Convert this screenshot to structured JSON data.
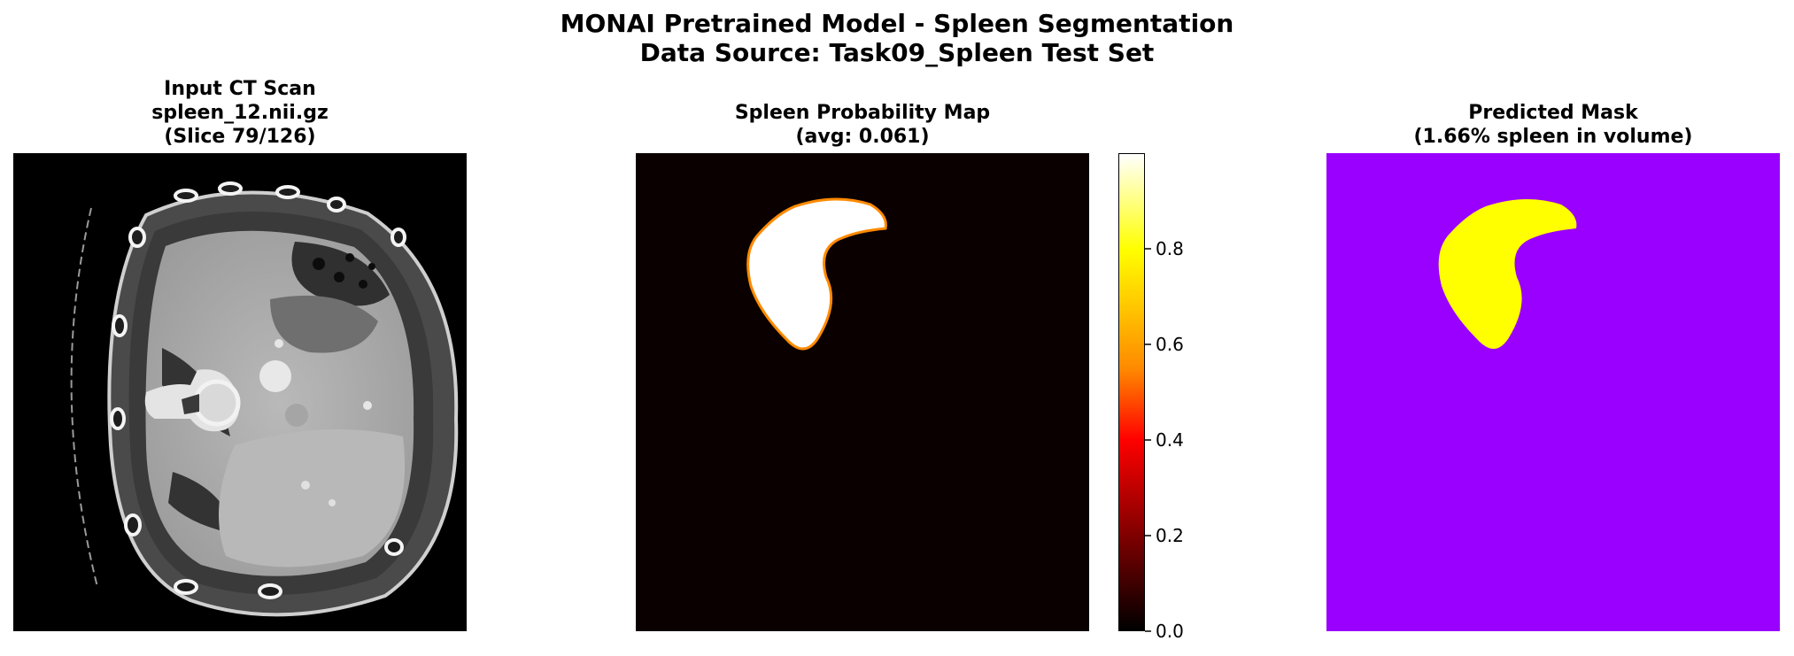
{
  "figure": {
    "title_line1": "MONAI Pretrained Model - Spleen Segmentation",
    "title_line2": "Data Source: Task09_Spleen Test Set"
  },
  "panels": [
    {
      "id": "ct",
      "title": [
        "Input CT Scan",
        "spleen_12.nii.gz",
        "(Slice 79/126)"
      ]
    },
    {
      "id": "prob",
      "title": [
        "Spleen Probability Map",
        "(avg: 0.061)"
      ]
    },
    {
      "id": "mask",
      "title": [
        "Predicted Mask",
        "(1.66% spleen in volume)"
      ]
    }
  ],
  "colorbar": {
    "colormap": "hot",
    "min": 0.0,
    "max": 1.0,
    "ticks": [
      "0.0",
      "0.2",
      "0.4",
      "0.6",
      "0.8"
    ]
  },
  "colors": {
    "background": "#000000",
    "prob_background": "#0b0000",
    "spleen_prob": "#ffffff",
    "spleen_edge": "#ff8a00",
    "mask_background": "#9a00ff",
    "mask_spleen": "#ffff00"
  }
}
